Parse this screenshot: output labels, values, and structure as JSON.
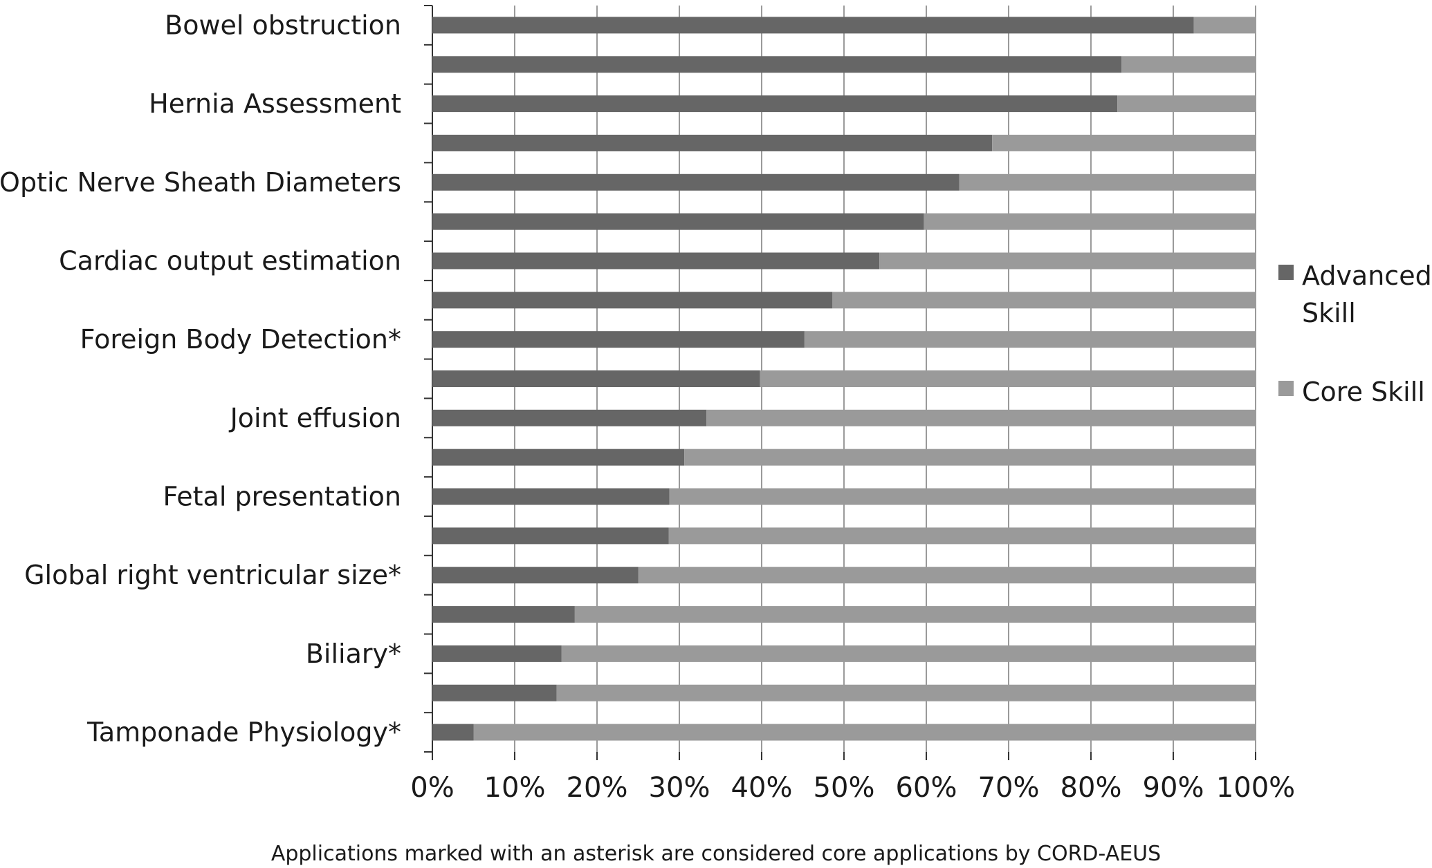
{
  "chart_data": {
    "type": "bar",
    "orientation": "horizontal",
    "stacked": "percent",
    "title": "",
    "xlabel": "",
    "ylabel": "",
    "xlim": [
      0,
      100
    ],
    "x_ticks": [
      "0%",
      "10%",
      "20%",
      "30%",
      "40%",
      "50%",
      "60%",
      "70%",
      "80%",
      "90%",
      "100%"
    ],
    "grid": "vertical",
    "legend_position": "right",
    "categories": [
      "Bowel obstruction",
      "",
      "Hernia Assessment",
      "",
      "Optic Nerve Sheath Diameters",
      "",
      "Cardiac output estimation",
      "",
      "Foreign Body Detection*",
      "",
      "Joint effusion",
      "",
      "Fetal presentation",
      "",
      "Global right ventricular size*",
      "",
      "Biliary*",
      "",
      "Tamponade Physiology*"
    ],
    "series": [
      {
        "name": "Advanced Skill",
        "color": "#666666",
        "values": [
          92.5,
          83.7,
          83.2,
          68.0,
          64.0,
          59.7,
          54.3,
          48.6,
          45.2,
          39.8,
          33.3,
          30.6,
          28.8,
          28.7,
          25.0,
          17.3,
          15.7,
          15.1,
          5.0
        ]
      },
      {
        "name": "Core Skill",
        "color": "#9a9a9a",
        "values": [
          7.5,
          16.3,
          16.8,
          32.0,
          36.0,
          40.3,
          45.7,
          51.4,
          54.8,
          60.2,
          66.7,
          69.4,
          71.2,
          71.3,
          75.0,
          82.7,
          84.3,
          84.9,
          95.0
        ]
      }
    ],
    "legend_labels": [
      {
        "line1": "Advanced",
        "line2": "Skill"
      },
      {
        "line1": "Core Skill",
        "line2": ""
      }
    ],
    "annotations": [
      "Applications marked with an asterisk are considered core applications by CORD-AEUS"
    ]
  }
}
